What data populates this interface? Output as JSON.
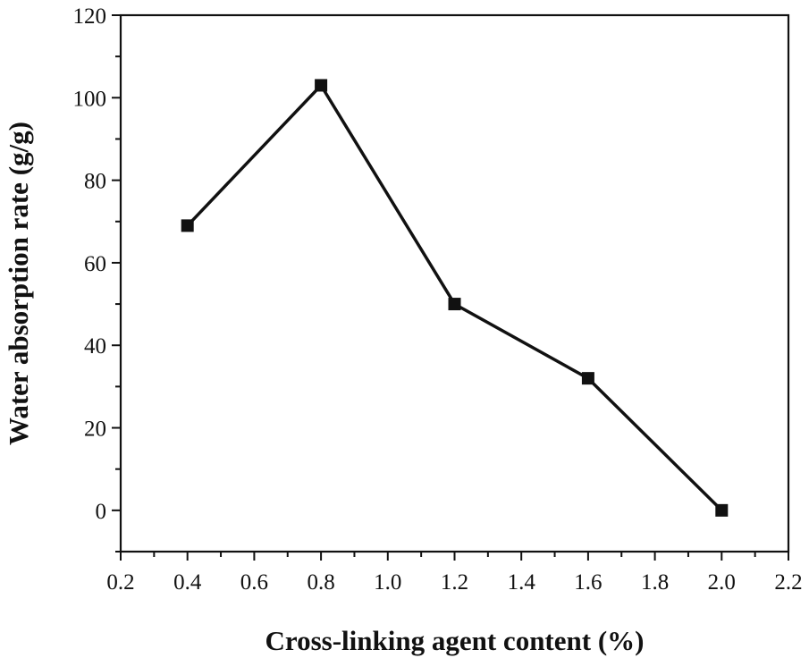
{
  "chart_data": {
    "type": "line",
    "title": "",
    "xlabel": "Cross-linking agent content (%)",
    "ylabel": "Water absorption rate (g/g)",
    "xlim": [
      0.2,
      2.2
    ],
    "ylim": [
      -10,
      120
    ],
    "x_ticks": [
      "0.2",
      "0.4",
      "0.6",
      "0.8",
      "1.0",
      "1.2",
      "1.4",
      "1.6",
      "1.8",
      "2.0",
      "2.2"
    ],
    "y_ticks": [
      "0",
      "20",
      "40",
      "60",
      "80",
      "100",
      "120"
    ],
    "grid": false,
    "legend": "none",
    "series": [
      {
        "x": [
          0.4,
          0.8,
          1.2,
          1.6,
          2.0
        ],
        "y": [
          69,
          103,
          50,
          32,
          0
        ],
        "color": "#111111",
        "marker": "square"
      }
    ]
  }
}
